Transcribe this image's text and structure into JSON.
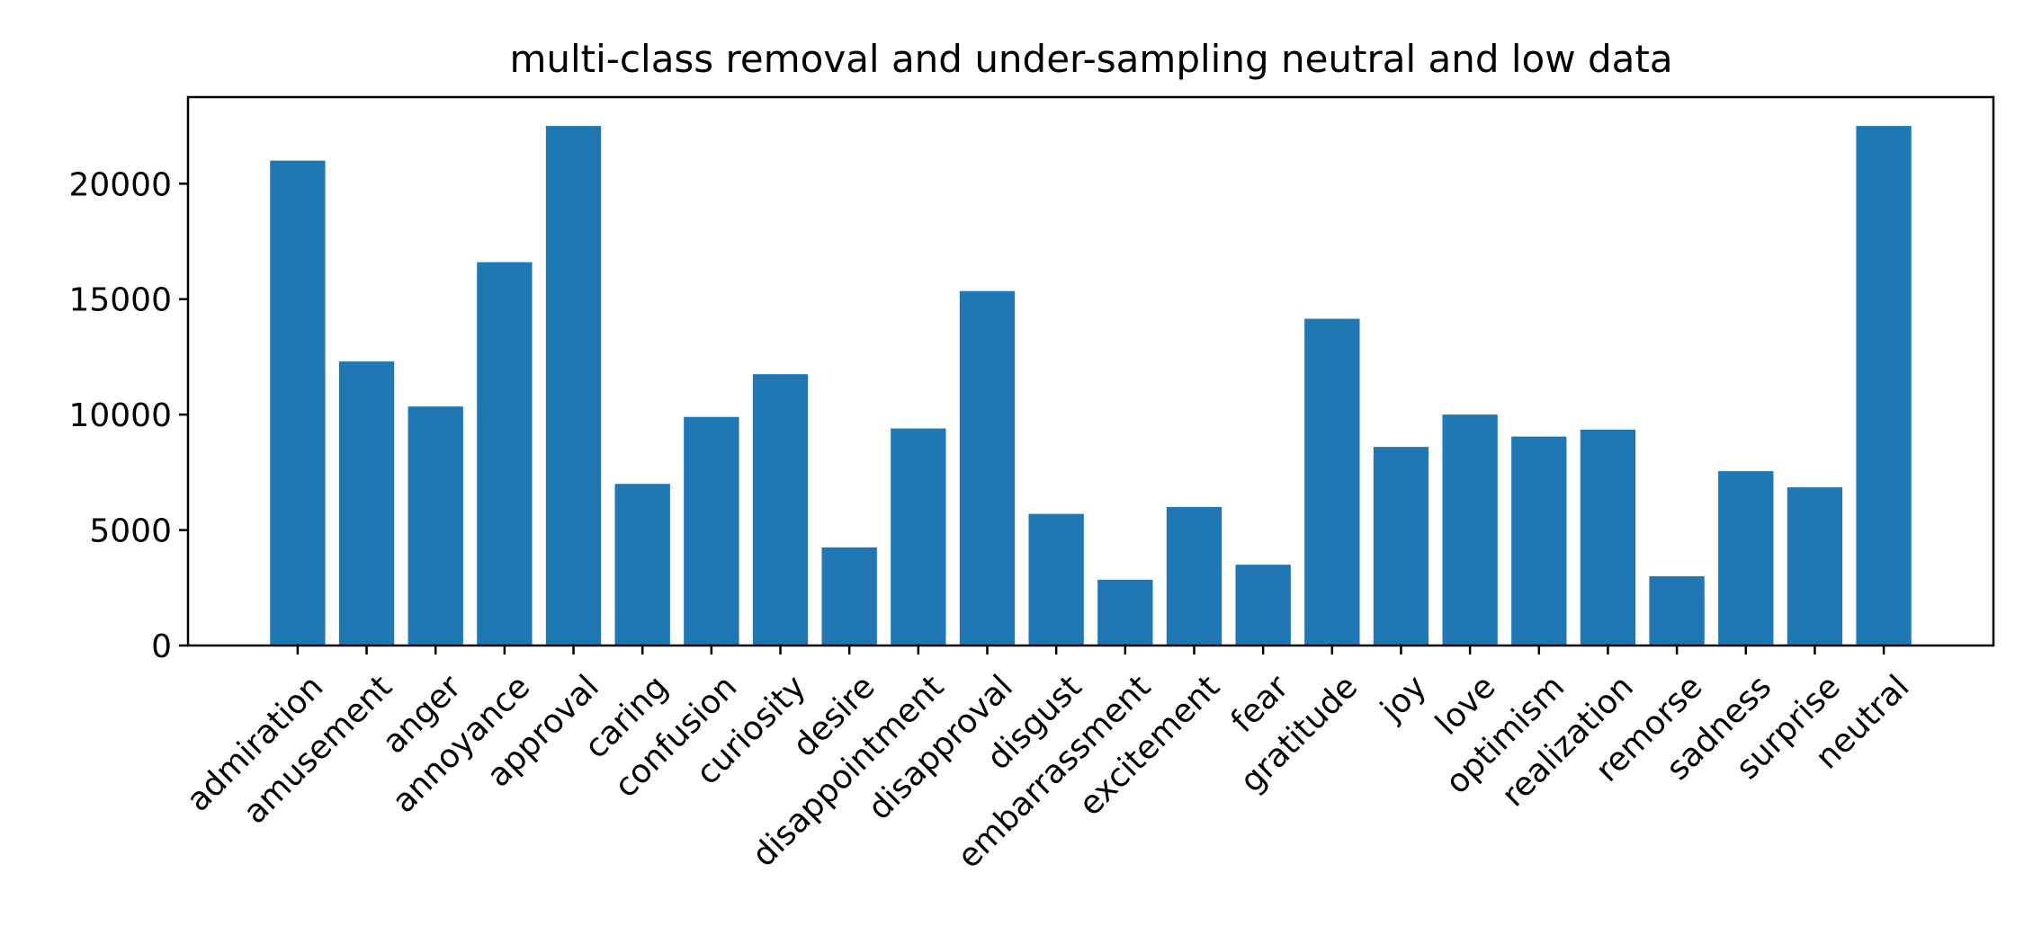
{
  "chart_data": {
    "type": "bar",
    "title": "multi-class removal and under-sampling neutral and low data",
    "xlabel": "",
    "ylabel": "",
    "ylim": [
      0,
      23750
    ],
    "yticks": [
      0,
      5000,
      10000,
      15000,
      20000
    ],
    "grid": false,
    "legend": "none",
    "bar_color": "#1f77b4",
    "categories": [
      "admiration",
      "amusement",
      "anger",
      "annoyance",
      "approval",
      "caring",
      "confusion",
      "curiosity",
      "desire",
      "disappointment",
      "disapproval",
      "disgust",
      "embarrassment",
      "excitement",
      "fear",
      "gratitude",
      "joy",
      "love",
      "optimism",
      "realization",
      "remorse",
      "sadness",
      "surprise",
      "neutral"
    ],
    "values": [
      21000,
      12300,
      10350,
      16600,
      22500,
      7000,
      9900,
      11750,
      4250,
      9400,
      15350,
      5700,
      2850,
      6000,
      3500,
      14150,
      8600,
      10000,
      9050,
      9350,
      3000,
      7550,
      6850,
      22500
    ]
  }
}
